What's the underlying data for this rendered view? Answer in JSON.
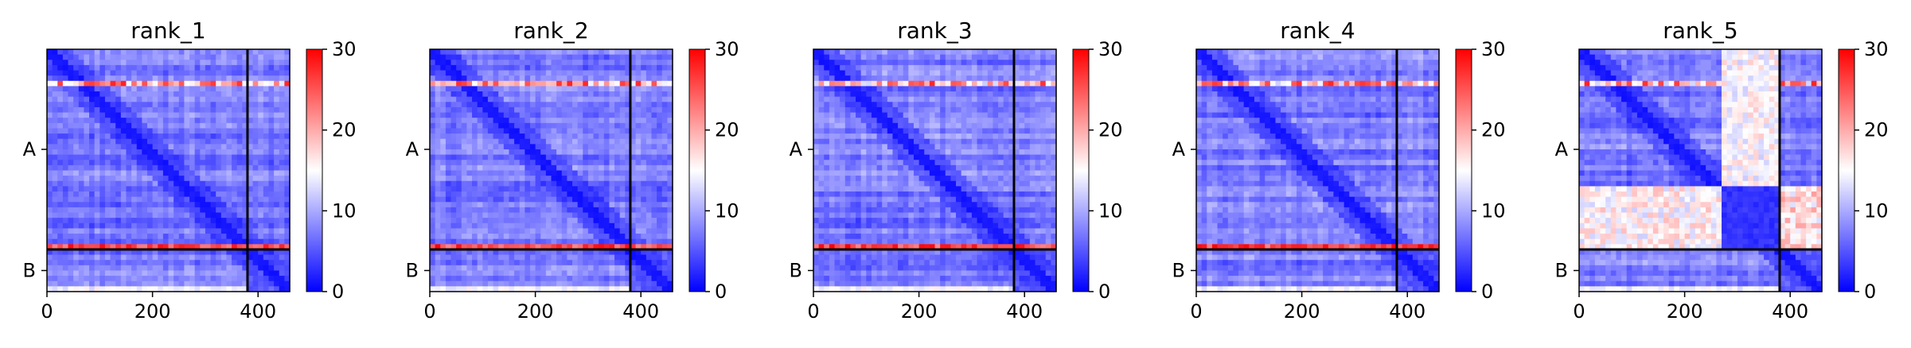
{
  "figure": {
    "colorbar": {
      "colormap": "bwr",
      "vmin": 0,
      "vmax": 30,
      "ticks": [
        "0",
        "10",
        "20",
        "30"
      ]
    },
    "boundary_color": "#000000"
  },
  "chart_data": [
    {
      "type": "heatmap",
      "title": "rank_1",
      "xlabel": "",
      "ylabel": "",
      "xticks": [
        "0",
        "200",
        "400"
      ],
      "yticks": [
        "A",
        "B"
      ],
      "xlim": [
        0,
        460
      ],
      "ylim": [
        460,
        0
      ],
      "chain_boundary": 380,
      "colorbar": {
        "vmin": 0,
        "vmax": 30,
        "ticks": [
          "0",
          "10",
          "20",
          "30"
        ]
      },
      "pattern": "low error across chains; high-error residues near rows ~60 and ~378"
    },
    {
      "type": "heatmap",
      "title": "rank_2",
      "xlabel": "",
      "ylabel": "",
      "xticks": [
        "0",
        "200",
        "400"
      ],
      "yticks": [
        "A",
        "B"
      ],
      "xlim": [
        0,
        460
      ],
      "ylim": [
        460,
        0
      ],
      "chain_boundary": 380,
      "colorbar": {
        "vmin": 0,
        "vmax": 30,
        "ticks": [
          "0",
          "10",
          "20",
          "30"
        ]
      },
      "pattern": "low error across chains; high-error residues near rows ~60 and ~378"
    },
    {
      "type": "heatmap",
      "title": "rank_3",
      "xlabel": "",
      "ylabel": "",
      "xticks": [
        "0",
        "200",
        "400"
      ],
      "yticks": [
        "A",
        "B"
      ],
      "xlim": [
        0,
        460
      ],
      "ylim": [
        460,
        0
      ],
      "chain_boundary": 380,
      "colorbar": {
        "vmin": 0,
        "vmax": 30,
        "ticks": [
          "0",
          "10",
          "20",
          "30"
        ]
      },
      "pattern": "low error across chains; high-error residues near rows ~60 and ~378"
    },
    {
      "type": "heatmap",
      "title": "rank_4",
      "xlabel": "",
      "ylabel": "",
      "xticks": [
        "0",
        "200",
        "400"
      ],
      "yticks": [
        "A",
        "B"
      ],
      "xlim": [
        0,
        460
      ],
      "ylim": [
        460,
        0
      ],
      "chain_boundary": 380,
      "colorbar": {
        "vmin": 0,
        "vmax": 30,
        "ticks": [
          "0",
          "10",
          "20",
          "30"
        ]
      },
      "pattern": "low error across chains; high-error residues near rows ~60 and ~378"
    },
    {
      "type": "heatmap",
      "title": "rank_5",
      "xlabel": "",
      "ylabel": "",
      "xticks": [
        "0",
        "200",
        "400"
      ],
      "yticks": [
        "A",
        "B"
      ],
      "xlim": [
        0,
        460
      ],
      "ylim": [
        460,
        0
      ],
      "chain_boundary": 380,
      "colorbar": {
        "vmin": 0,
        "vmax": 30,
        "ticks": [
          "0",
          "10",
          "20",
          "30"
        ]
      },
      "pattern": "elevated inter-region error: columns ~270-370 and rows ~265-375 near white/red; off-diagonal chain B block high"
    }
  ]
}
